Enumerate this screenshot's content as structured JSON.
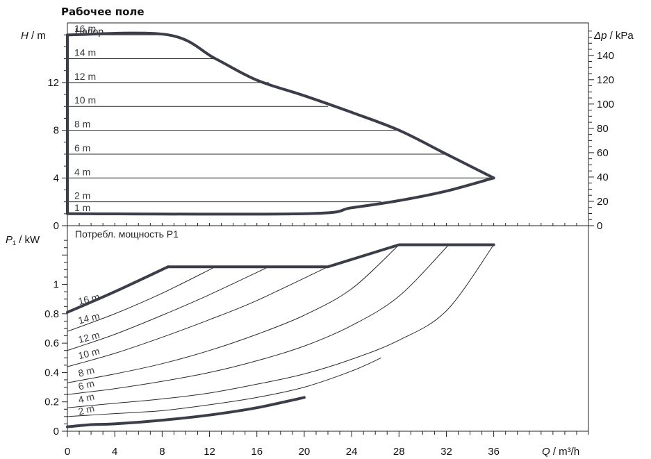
{
  "title": "Рабочее поле",
  "colors": {
    "heavy": "#3b3e48",
    "thin": "#2a2a2a",
    "frame": "#222222",
    "label": "#3a3a42"
  },
  "axes": {
    "x": {
      "label_var": "Q",
      "label_unit": " / m³/h",
      "min": 0,
      "max": 44,
      "ticks": [
        0,
        4,
        8,
        12,
        16,
        20,
        24,
        28,
        32,
        36
      ],
      "minor_step": 1
    },
    "y_head": {
      "label_var": "H",
      "label_unit": " / m",
      "min": 0,
      "max": 17,
      "ticks": [
        0,
        4,
        8,
        12
      ],
      "minor_step": 1
    },
    "y_pressure": {
      "label_var": "Δp",
      "label_unit": " / kPa",
      "min": 0,
      "max": 166.7,
      "ticks": [
        0,
        20,
        40,
        60,
        80,
        100,
        120,
        140
      ],
      "minor_step": 5
    },
    "y_power": {
      "label_var": "P",
      "label_sub": "1",
      "label_unit": " / kW",
      "min": 0,
      "max": 1.4,
      "ticks": [
        0,
        0.2,
        0.4,
        0.6,
        0.8,
        1
      ],
      "tick_labels": [
        "0",
        "0.2",
        "0.4",
        "0.6",
        "0.8",
        "1"
      ],
      "minor_step": 0.05
    }
  },
  "chart_data": [
    {
      "type": "line",
      "title": "Напор",
      "xlabel": "Q / m³/h",
      "ylabel": "H / m",
      "ylabel_right": "Δp / kPa",
      "xlim": [
        0,
        44
      ],
      "ylim": [
        0,
        17
      ],
      "envelope": {
        "x": [
          0,
          8.5,
          12.5,
          16,
          20,
          24,
          28,
          32,
          36,
          32,
          28,
          24,
          20,
          0,
          0
        ],
        "y": [
          16,
          16,
          14,
          12.2,
          10.9,
          9.5,
          8,
          6,
          4,
          2.9,
          2.1,
          1.5,
          1,
          1,
          16
        ]
      },
      "series": [
        {
          "name": "1 m",
          "x": [
            0,
            20
          ],
          "y": [
            1,
            1
          ]
        },
        {
          "name": "2 m",
          "x": [
            0,
            26.5
          ],
          "y": [
            2,
            2
          ]
        },
        {
          "name": "4 m",
          "x": [
            0,
            36
          ],
          "y": [
            4,
            4
          ]
        },
        {
          "name": "6 m",
          "x": [
            0,
            32.2
          ],
          "y": [
            6,
            6
          ]
        },
        {
          "name": "8 m",
          "x": [
            0,
            28
          ],
          "y": [
            8,
            8
          ]
        },
        {
          "name": "10 m",
          "x": [
            0,
            22
          ],
          "y": [
            10,
            10
          ]
        },
        {
          "name": "12 m",
          "x": [
            0,
            17
          ],
          "y": [
            12,
            12
          ]
        },
        {
          "name": "14 m",
          "x": [
            0,
            12.5
          ],
          "y": [
            14,
            14
          ]
        },
        {
          "name": "16 m",
          "x": [
            0,
            8.5
          ],
          "y": [
            16,
            16
          ]
        }
      ]
    },
    {
      "type": "line",
      "title": "Потребл. мощность P1",
      "xlabel": "Q / m³/h",
      "ylabel": "P1 / kW",
      "xlim": [
        0,
        44
      ],
      "ylim": [
        0,
        1.4
      ],
      "envelope": {
        "x": [
          0,
          4,
          8.5,
          22,
          28,
          36
        ],
        "y": [
          0.81,
          0.95,
          1.12,
          1.12,
          1.27,
          1.27
        ]
      },
      "min_curve": {
        "x": [
          0,
          2,
          4,
          8,
          12,
          16,
          20
        ],
        "y": [
          0.03,
          0.045,
          0.05,
          0.075,
          0.11,
          0.16,
          0.23
        ]
      },
      "series": [
        {
          "name": "16 m",
          "x": [
            0,
            4,
            8.5
          ],
          "y": [
            0.81,
            0.95,
            1.12
          ]
        },
        {
          "name": "14 m",
          "x": [
            0,
            4,
            8,
            12.5
          ],
          "y": [
            0.68,
            0.8,
            0.94,
            1.12
          ]
        },
        {
          "name": "12 m",
          "x": [
            0,
            4,
            8,
            12,
            17
          ],
          "y": [
            0.55,
            0.66,
            0.79,
            0.93,
            1.12
          ]
        },
        {
          "name": "10 m",
          "x": [
            0,
            4,
            8,
            12,
            16,
            22
          ],
          "y": [
            0.44,
            0.53,
            0.64,
            0.76,
            0.89,
            1.12
          ]
        },
        {
          "name": "8 m",
          "x": [
            0,
            4,
            8,
            12,
            16,
            20,
            24,
            28
          ],
          "y": [
            0.33,
            0.39,
            0.46,
            0.55,
            0.66,
            0.79,
            0.97,
            1.27
          ]
        },
        {
          "name": "6 m",
          "x": [
            0,
            4,
            8,
            12,
            16,
            20,
            24,
            28,
            32.2
          ],
          "y": [
            0.25,
            0.29,
            0.34,
            0.4,
            0.48,
            0.58,
            0.72,
            0.92,
            1.27
          ]
        },
        {
          "name": "4 m",
          "x": [
            0,
            4,
            8,
            12,
            16,
            20,
            24,
            28,
            32,
            36
          ],
          "y": [
            0.16,
            0.19,
            0.22,
            0.26,
            0.32,
            0.39,
            0.49,
            0.62,
            0.82,
            1.27
          ]
        },
        {
          "name": "2 m",
          "x": [
            0,
            4,
            8,
            12,
            16,
            20,
            24,
            26.5
          ],
          "y": [
            0.1,
            0.12,
            0.14,
            0.18,
            0.23,
            0.3,
            0.41,
            0.5
          ]
        },
        {
          "name": "1 m",
          "x": [
            0,
            4,
            8,
            12,
            16,
            20
          ],
          "y": [
            0.03,
            0.05,
            0.075,
            0.11,
            0.16,
            0.23
          ]
        }
      ],
      "curve_labels": [
        {
          "text": "16 m",
          "x": 1.0,
          "y": 0.86
        },
        {
          "text": "14 m",
          "x": 1.0,
          "y": 0.73
        },
        {
          "text": "12 m",
          "x": 1.0,
          "y": 0.6
        },
        {
          "text": "10 m",
          "x": 1.0,
          "y": 0.49
        },
        {
          "text": "8 m",
          "x": 1.0,
          "y": 0.37
        },
        {
          "text": "6 m",
          "x": 1.0,
          "y": 0.28
        },
        {
          "text": "4 m",
          "x": 1.0,
          "y": 0.19
        },
        {
          "text": "2 m",
          "x": 1.0,
          "y": 0.11
        }
      ]
    }
  ]
}
